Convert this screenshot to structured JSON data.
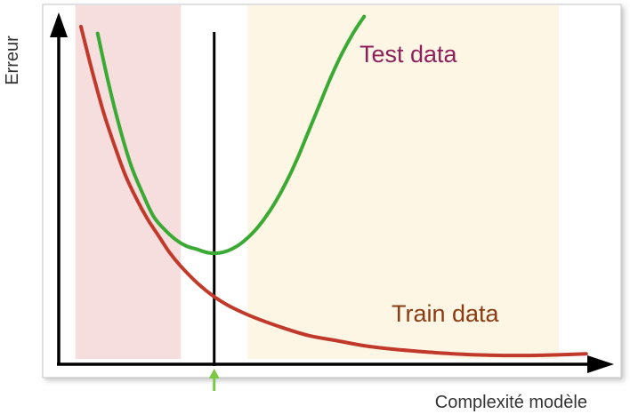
{
  "chart_data": {
    "type": "line",
    "title": "",
    "xlabel": "Complexité modèle",
    "ylabel": "Erreur",
    "xlim": [
      0,
      100
    ],
    "ylim": [
      0,
      100
    ],
    "grid": false,
    "legend": "inline-labels",
    "x_ticks": [],
    "y_ticks": [],
    "regions": [
      {
        "id": "underfit",
        "x_range": [
          3,
          22
        ],
        "color": "#f7dede"
      },
      {
        "id": "overfit",
        "x_range": [
          34,
          100
        ],
        "color": "#fdf6e4"
      }
    ],
    "optimum": {
      "x": 28,
      "line_color": "#000000",
      "marker_color": "#7ac943"
    },
    "series": [
      {
        "name": "Test data",
        "color": "#3aaa35",
        "label_color": "#8e1f5b",
        "x": [
          7,
          9,
          11,
          13,
          15,
          17,
          19,
          21,
          23,
          25,
          27,
          29,
          31,
          33,
          35,
          37,
          39,
          41,
          43,
          45,
          47,
          49,
          51,
          53,
          55
        ],
        "y": [
          98,
          83,
          70,
          59,
          51,
          44,
          40,
          37,
          35,
          34,
          33,
          33,
          34,
          36,
          39,
          43,
          48,
          54,
          61,
          69,
          77,
          85,
          92,
          98,
          103
        ]
      },
      {
        "name": "Train data",
        "color": "#c0392b",
        "label_color": "#8b3a12",
        "x": [
          4,
          6,
          8,
          10,
          12,
          14,
          16,
          18,
          20,
          22,
          25,
          28,
          31,
          35,
          40,
          45,
          50,
          55,
          60,
          65,
          70,
          75,
          80,
          85,
          90,
          95
        ],
        "y": [
          100,
          87,
          75,
          65,
          56,
          49,
          43,
          38,
          33,
          29,
          24,
          20,
          17,
          14,
          11,
          8.5,
          7,
          5.5,
          4.5,
          3.8,
          3.2,
          2.8,
          2.6,
          2.6,
          2.8,
          3.1
        ]
      }
    ]
  }
}
